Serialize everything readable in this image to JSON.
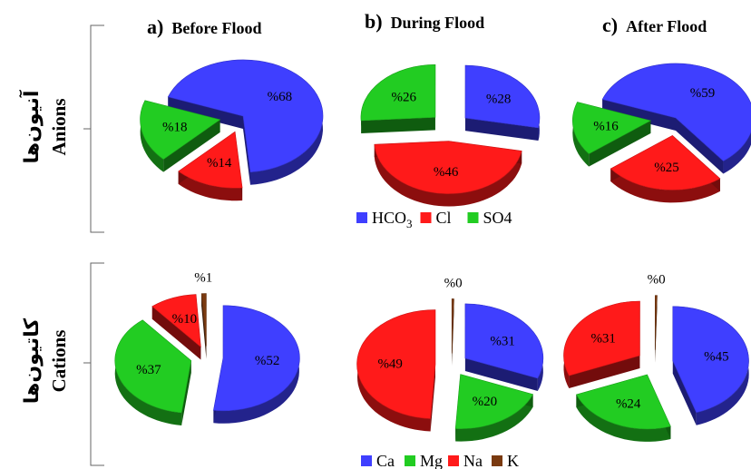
{
  "chart_data": [
    {
      "type": "pie",
      "title": "a) Before Flood",
      "panel_letter": "a)",
      "panel_title": "Before Flood",
      "row": "Anions",
      "row_fa": "آنیون‌ها",
      "categories": [
        "HCO3",
        "Cl",
        "SO4"
      ],
      "values": [
        68,
        14,
        18
      ],
      "labels": [
        "%68",
        "%14",
        "%18"
      ],
      "colors": [
        "#3f3fff",
        "#ff1a1a",
        "#22cc22"
      ]
    },
    {
      "type": "pie",
      "title": "b) During Flood",
      "panel_letter": "b)",
      "panel_title": "During Flood",
      "row": "Anions",
      "row_fa": "آنیون‌ها",
      "categories": [
        "HCO3",
        "Cl",
        "SO4"
      ],
      "values": [
        28,
        46,
        26
      ],
      "labels": [
        "%28",
        "%46",
        "%26"
      ],
      "colors": [
        "#3f3fff",
        "#ff1a1a",
        "#22cc22"
      ]
    },
    {
      "type": "pie",
      "title": "c) After Flood",
      "panel_letter": "c)",
      "panel_title": "After Flood",
      "row": "Anions",
      "row_fa": "آنیون‌ها",
      "categories": [
        "HCO3",
        "Cl",
        "SO4"
      ],
      "values": [
        59,
        25,
        16
      ],
      "labels": [
        "%59",
        "%25",
        "%16"
      ],
      "colors": [
        "#3f3fff",
        "#ff1a1a",
        "#22cc22"
      ]
    },
    {
      "type": "pie",
      "row": "Cations",
      "row_fa": "کاتیون‌ها",
      "categories": [
        "Ca",
        "Mg",
        "Na",
        "K"
      ],
      "values": [
        52,
        37,
        10,
        1
      ],
      "labels": [
        "%52",
        "%37",
        "%10",
        "%1"
      ],
      "colors": [
        "#3f3fff",
        "#22cc22",
        "#ff1a1a",
        "#7a3a10"
      ]
    },
    {
      "type": "pie",
      "row": "Cations",
      "row_fa": "کاتیون‌ها",
      "categories": [
        "Ca",
        "Mg",
        "Na",
        "K"
      ],
      "values": [
        31,
        20,
        49,
        0
      ],
      "labels": [
        "%31",
        "%20",
        "%49",
        "%0"
      ],
      "colors": [
        "#3f3fff",
        "#22cc22",
        "#ff1a1a",
        "#7a3a10"
      ]
    },
    {
      "type": "pie",
      "row": "Cations",
      "row_fa": "کاتیون‌ها",
      "categories": [
        "Ca",
        "Mg",
        "Na",
        "K"
      ],
      "values": [
        45,
        24,
        31,
        0
      ],
      "labels": [
        "%45",
        "%24",
        "%31",
        "%0"
      ],
      "colors": [
        "#3f3fff",
        "#22cc22",
        "#ff1a1a",
        "#7a3a10"
      ]
    }
  ],
  "rows": {
    "anions": {
      "label": "Anions",
      "label_fa": "آنیون‌ها"
    },
    "cations": {
      "label": "Cations",
      "label_fa": "کاتیون‌ها"
    }
  },
  "legends": {
    "anions": [
      {
        "sym": "HCO",
        "sub": "3",
        "color": "#3f3fff"
      },
      {
        "sym": "Cl",
        "sub": "",
        "color": "#ff1a1a"
      },
      {
        "sym": "SO4",
        "sub": "",
        "color": "#22cc22"
      }
    ],
    "cations": [
      {
        "sym": "Ca",
        "sub": "",
        "color": "#3f3fff"
      },
      {
        "sym": "Mg",
        "sub": "",
        "color": "#22cc22"
      },
      {
        "sym": "Na",
        "sub": "",
        "color": "#ff1a1a"
      },
      {
        "sym": "K",
        "sub": "",
        "color": "#7a3a10"
      }
    ]
  }
}
